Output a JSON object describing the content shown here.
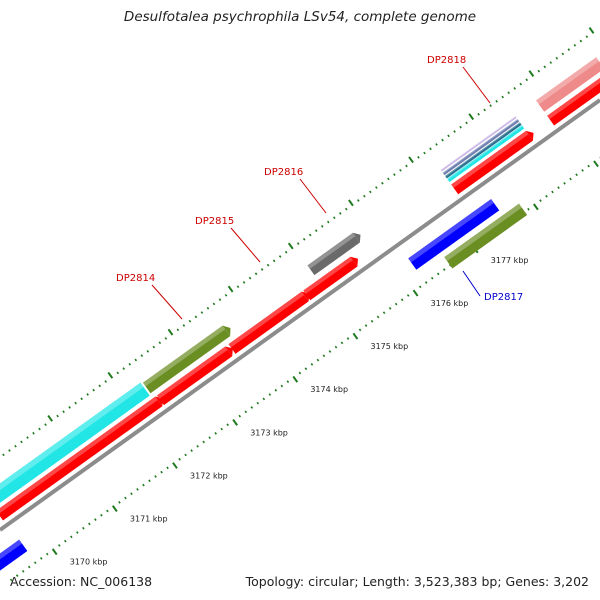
{
  "header": {
    "title": "Desulfotalea psychrophila LSv54, complete genome"
  },
  "footer": {
    "accession": "Accession: NC_006138",
    "summary": "Topology: circular; Length: 3,523,383 bp; Genes: 3,202"
  },
  "colors": {
    "backbone": "#8c8c8c",
    "tick": "#1f7a1f",
    "forward_label": "#cc0000",
    "reverse_label": "#0000cc",
    "red": "#ff0000",
    "olive": "#6b8e23",
    "cyan": "#22e6e6",
    "gray": "#6a6a6a",
    "blue": "#0000ff",
    "pink": "#ef8a8a",
    "slate": "#6f7fb0"
  },
  "scale_labels": [
    "3170 kbp",
    "3171 kbp",
    "3172 kbp",
    "3173 kbp",
    "3174 kbp",
    "3175 kbp",
    "3176 kbp",
    "3177 kbp"
  ],
  "gene_labels": [
    {
      "id": "DP2814",
      "strand": "forward"
    },
    {
      "id": "DP2815",
      "strand": "forward"
    },
    {
      "id": "DP2816",
      "strand": "forward"
    },
    {
      "id": "DP2817",
      "strand": "reverse"
    },
    {
      "id": "DP2818",
      "strand": "forward"
    }
  ]
}
